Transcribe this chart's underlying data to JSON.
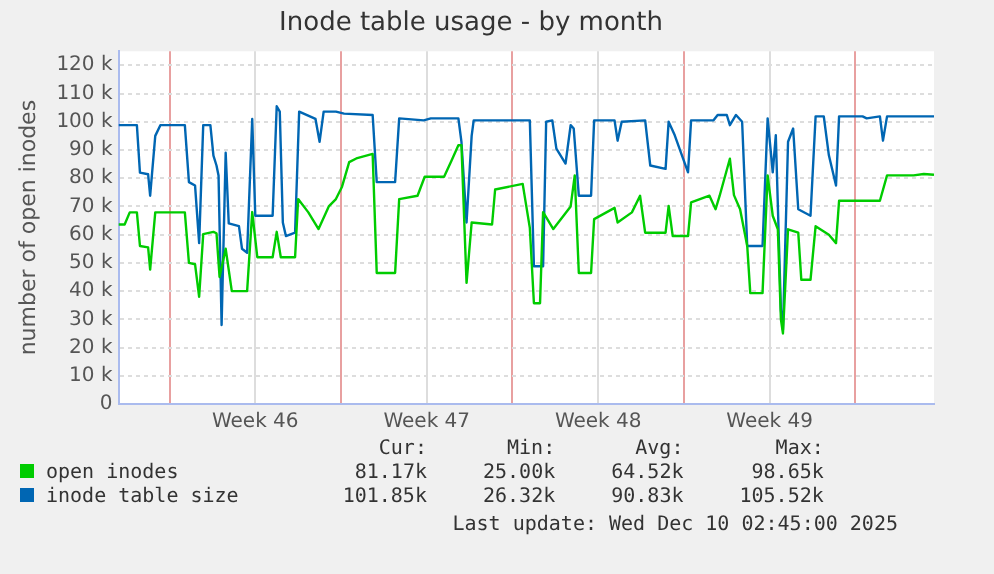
{
  "chart_data": {
    "type": "line",
    "title": "Inode table usage - by month",
    "ylabel": "number of open inodes",
    "xlim": [
      "2025-11-07T22:00",
      "2025-12-11T05:00"
    ],
    "xticks": [
      {
        "value": "2025-11-10",
        "label": null
      },
      {
        "value": "2025-11-13T12:00",
        "label": "Week 46"
      },
      {
        "value": "2025-11-17",
        "label": null
      },
      {
        "value": "2025-11-20T12:00",
        "label": "Week 47"
      },
      {
        "value": "2025-11-24",
        "label": null
      },
      {
        "value": "2025-11-27T12:00",
        "label": "Week 48"
      },
      {
        "value": "2025-12-01",
        "label": null
      },
      {
        "value": "2025-12-04T12:00",
        "label": "Week 49"
      },
      {
        "value": "2025-12-08",
        "label": null
      }
    ],
    "ylim": [
      0,
      125
    ],
    "yticks": [
      {
        "value": 0,
        "label": "0"
      },
      {
        "value": 10,
        "label": "10 k"
      },
      {
        "value": 20,
        "label": "20 k"
      },
      {
        "value": 30,
        "label": "30 k"
      },
      {
        "value": 40,
        "label": "40 k"
      },
      {
        "value": 50,
        "label": "50 k"
      },
      {
        "value": 60,
        "label": "60 k"
      },
      {
        "value": 70,
        "label": "70 k"
      },
      {
        "value": 80,
        "label": "80 k"
      },
      {
        "value": 90,
        "label": "90 k"
      },
      {
        "value": 100,
        "label": "100 k"
      },
      {
        "value": 110,
        "label": "110 k"
      },
      {
        "value": 120,
        "label": "120 k"
      }
    ],
    "grid": true,
    "legend": "bottom",
    "marker": "none",
    "line_style": "solid",
    "series": [
      {
        "name": "open inodes",
        "color": "#00cc00",
        "x": [
          "2025-11-07T22:00",
          "2025-11-08T04:00",
          "2025-11-08T09:00",
          "2025-11-08T16:00",
          "2025-11-08T19:00",
          "2025-11-09T03:00",
          "2025-11-09T05:00",
          "2025-11-09T10:00",
          "2025-11-10T15:00",
          "2025-11-10T19:00",
          "2025-11-11T01:00",
          "2025-11-11T05:00",
          "2025-11-11T09:00",
          "2025-11-11T19:00",
          "2025-11-11T22:00",
          "2025-11-12T01:00",
          "2025-11-12T07:00",
          "2025-11-12T13:00",
          "2025-11-13T04:00",
          "2025-11-13T09:00",
          "2025-11-13T14:00",
          "2025-11-14T05:00",
          "2025-11-14T09:00",
          "2025-11-14T13:00",
          "2025-11-15T03:00",
          "2025-11-15T06:00",
          "2025-11-15T16:00",
          "2025-11-16T02:00",
          "2025-11-16T12:00",
          "2025-11-16T19:00",
          "2025-11-17T01:00",
          "2025-11-17T08:00",
          "2025-11-17T15:00",
          "2025-11-18T07:00",
          "2025-11-18T11:00",
          "2025-11-19T05:00",
          "2025-11-19T09:00",
          "2025-11-20T03:00",
          "2025-11-20T10:00",
          "2025-11-21T05:00",
          "2025-11-21T12:00",
          "2025-11-21T19:00",
          "2025-11-21T22:00",
          "2025-11-22T03:00",
          "2025-11-22T08:00",
          "2025-11-23T04:00",
          "2025-11-23T07:00",
          "2025-11-24T10:00",
          "2025-11-24T17:00",
          "2025-11-24T21:00",
          "2025-11-25T03:00",
          "2025-11-25T06:00",
          "2025-11-25T16:00",
          "2025-11-26T09:00",
          "2025-11-26T13:00",
          "2025-11-26T17:00",
          "2025-11-27T05:00",
          "2025-11-27T08:00",
          "2025-11-28T04:00",
          "2025-11-28T07:00",
          "2025-11-28T21:00",
          "2025-11-29T05:00",
          "2025-11-29T10:00",
          "2025-11-30T06:00",
          "2025-11-30T09:00",
          "2025-11-30T13:00",
          "2025-12-01T04:00",
          "2025-12-01T07:00",
          "2025-12-02T01:00",
          "2025-12-02T07:00",
          "2025-12-02T11:00",
          "2025-12-02T21:00",
          "2025-12-03T01:00",
          "2025-12-03T07:00",
          "2025-12-03T14:00",
          "2025-12-03T17:00",
          "2025-12-04T05:00",
          "2025-12-04T10:00",
          "2025-12-04T15:00",
          "2025-12-04T20:00",
          "2025-12-04T23:00",
          "2025-12-05T01:00",
          "2025-12-05T06:00",
          "2025-12-05T16:00",
          "2025-12-05T19:00",
          "2025-12-06T04:00",
          "2025-12-06T09:00",
          "2025-12-06T22:00",
          "2025-12-07T05:00",
          "2025-12-07T08:00",
          "2025-12-09T00:00",
          "2025-12-09T07:00",
          "2025-12-10T09:00",
          "2025-12-10T19:00",
          "2025-12-11T05:00"
        ],
        "values": [
          63.6,
          63.6,
          67.9,
          67.9,
          56,
          55.5,
          47.6,
          67.9,
          67.9,
          50,
          49.5,
          38,
          60.2,
          61,
          60.5,
          45,
          55,
          40,
          40,
          68,
          52,
          52,
          61,
          52,
          52,
          72.6,
          67.9,
          62,
          70,
          72.6,
          77,
          85.7,
          87,
          88.6,
          46.4,
          46.4,
          72.6,
          73.8,
          80.5,
          80.5,
          86,
          91.7,
          91.7,
          42.9,
          64.3,
          63.6,
          76,
          78,
          62.4,
          35.7,
          35.7,
          68,
          62,
          70,
          81,
          46.4,
          46.4,
          65.5,
          69.5,
          64.3,
          67.9,
          73.8,
          60.7,
          60.7,
          70.2,
          59.5,
          59.5,
          71.4,
          73.8,
          69,
          73.8,
          86.9,
          74,
          69,
          56,
          39.3,
          39.3,
          81,
          66.7,
          61.9,
          30,
          25,
          61.9,
          60.7,
          44,
          44,
          63,
          60,
          57,
          72,
          72,
          81,
          81,
          81.5,
          81.2
        ]
      },
      {
        "name": "inode table size",
        "color": "#0066b3",
        "x": [
          "2025-11-07T22:00",
          "2025-11-08T16:00",
          "2025-11-08T19:00",
          "2025-11-09T03:00",
          "2025-11-09T05:00",
          "2025-11-09T10:00",
          "2025-11-09T15:00",
          "2025-11-10T15:00",
          "2025-11-10T19:00",
          "2025-11-11T01:00",
          "2025-11-11T05:00",
          "2025-11-11T09:00",
          "2025-11-11T16:00",
          "2025-11-11T19:00",
          "2025-11-11T22:00",
          "2025-11-12T00:00",
          "2025-11-12T03:00",
          "2025-11-12T07:00",
          "2025-11-12T10:00",
          "2025-11-12T20:00",
          "2025-11-12T23:00",
          "2025-11-13T04:00",
          "2025-11-13T09:00",
          "2025-11-13T12:00",
          "2025-11-14T05:00",
          "2025-11-14T09:00",
          "2025-11-14T12:00",
          "2025-11-14T15:00",
          "2025-11-14T18:00",
          "2025-11-15T03:00",
          "2025-11-15T07:00",
          "2025-11-15T23:00",
          "2025-11-16T03:00",
          "2025-11-16T07:00",
          "2025-11-16T19:00",
          "2025-11-17T03:00",
          "2025-11-18T07:00",
          "2025-11-18T11:00",
          "2025-11-19T05:00",
          "2025-11-19T09:00",
          "2025-11-20T09:00",
          "2025-11-20T16:00",
          "2025-11-21T19:00",
          "2025-11-21T22:00",
          "2025-11-22T03:00",
          "2025-11-22T08:00",
          "2025-11-22T10:00",
          "2025-11-23T04:00",
          "2025-11-24T17:00",
          "2025-11-24T21:00",
          "2025-11-25T06:00",
          "2025-11-25T09:00",
          "2025-11-25T15:00",
          "2025-11-25T19:00",
          "2025-11-26T04:00",
          "2025-11-26T09:00",
          "2025-11-26T12:00",
          "2025-11-26T17:00",
          "2025-11-27T05:00",
          "2025-11-27T08:00",
          "2025-11-28T04:00",
          "2025-11-28T07:00",
          "2025-11-28T11:00",
          "2025-11-29T10:00",
          "2025-11-29T15:00",
          "2025-11-30T06:00",
          "2025-11-30T09:00",
          "2025-11-30T15:00",
          "2025-12-01T04:00",
          "2025-12-01T07:00",
          "2025-12-02T05:00",
          "2025-12-02T09:00",
          "2025-12-02T18:00",
          "2025-12-02T21:00",
          "2025-12-03T03:00",
          "2025-12-03T09:00",
          "2025-12-03T14:00",
          "2025-12-04T05:00",
          "2025-12-04T10:00",
          "2025-12-04T15:00",
          "2025-12-04T18:00",
          "2025-12-04T23:00",
          "2025-12-05T01:00",
          "2025-12-05T06:00",
          "2025-12-05T11:00",
          "2025-12-05T16:00",
          "2025-12-06T04:00",
          "2025-12-06T09:00",
          "2025-12-06T17:00",
          "2025-12-06T22:00",
          "2025-12-07T05:00",
          "2025-12-07T08:00",
          "2025-12-08T07:00",
          "2025-12-08T11:00",
          "2025-12-09T00:00",
          "2025-12-09T03:00",
          "2025-12-09T07:00",
          "2025-12-11T05:00"
        ],
        "values": [
          98.8,
          98.8,
          82,
          81.4,
          73.8,
          95,
          98.8,
          98.8,
          78.6,
          77.4,
          57,
          98.8,
          98.8,
          88,
          84.5,
          81,
          28,
          89,
          64,
          63,
          55,
          53.6,
          101,
          66.7,
          66.7,
          105.5,
          103.6,
          64.3,
          59.5,
          60.7,
          103.6,
          101,
          92.9,
          103.6,
          103.6,
          102.9,
          102.4,
          78.6,
          78.6,
          101.2,
          100.5,
          101.2,
          101.2,
          92.9,
          64.3,
          95,
          100.5,
          100.5,
          100.5,
          48.8,
          48.8,
          100,
          100.5,
          90.5,
          85.2,
          98.8,
          97.6,
          73.8,
          73.8,
          100.5,
          100.5,
          93.3,
          100,
          100.5,
          84.5,
          83.3,
          100,
          95.2,
          82.1,
          100.5,
          100.5,
          102.4,
          102.4,
          98.8,
          102.4,
          100,
          56,
          56,
          101.2,
          82.1,
          95.2,
          33.3,
          26.3,
          92.9,
          97.6,
          69,
          66.7,
          101.9,
          101.9,
          88.1,
          77.4,
          101.9,
          101.9,
          101.2,
          101.9,
          93.3,
          101.9,
          101.9
        ]
      }
    ],
    "annotations": [
      "Cur:",
      "Min:",
      "Avg:",
      "Max:",
      "81.17k",
      "25.00k",
      "64.52k",
      "98.65k",
      "101.85k",
      "26.32k",
      "90.83k",
      "105.52k",
      "Last update: Wed Dec 10 02:45:00 2025"
    ]
  }
}
